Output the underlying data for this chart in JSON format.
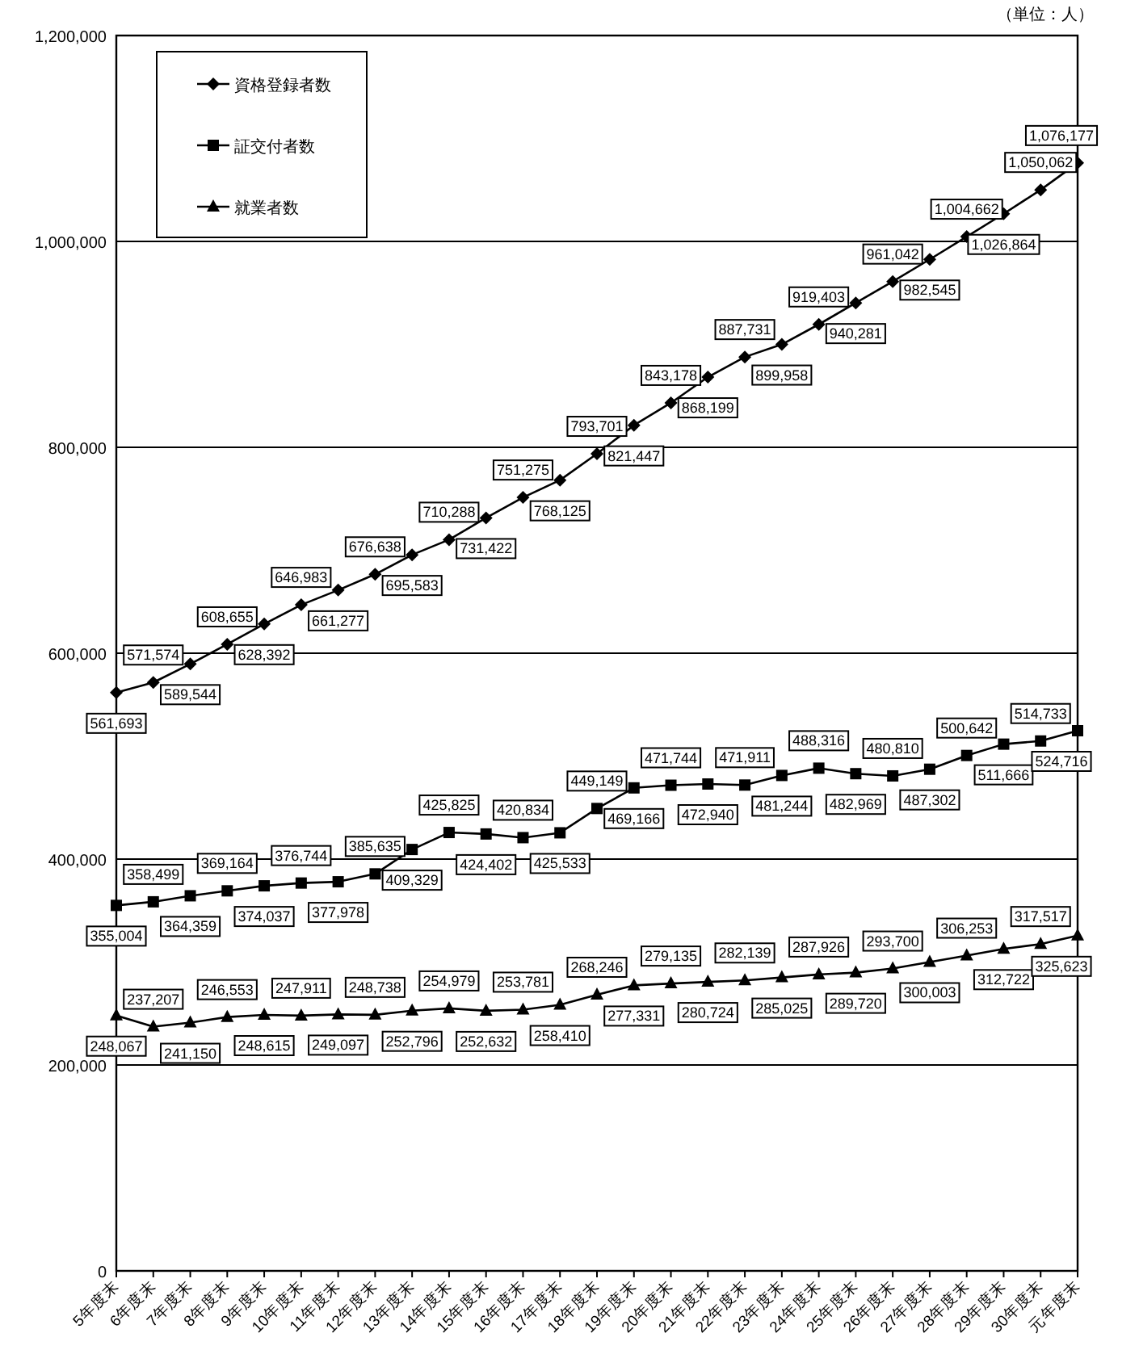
{
  "chart_data": {
    "type": "line",
    "annotations": [
      "（単位：人）"
    ],
    "categories": [
      "5年度末",
      "6年度末",
      "7年度末",
      "8年度末",
      "9年度末",
      "10年度末",
      "11年度末",
      "12年度末",
      "13年度末",
      "14年度末",
      "15年度末",
      "16年度末",
      "17年度末",
      "18年度末",
      "19年度末",
      "20年度末",
      "21年度末",
      "22年度末",
      "23年度末",
      "24年度末",
      "25年度末",
      "26年度末",
      "27年度末",
      "28年度末",
      "29年度末",
      "30年度末",
      "元年度末"
    ],
    "series": [
      {
        "name": "資格登録者数",
        "color": "#000000",
        "marker": "diamond",
        "values": [
          561693,
          571574,
          589544,
          608655,
          628392,
          646983,
          661277,
          676638,
          695583,
          710288,
          731422,
          751275,
          768125,
          793701,
          821447,
          843178,
          868199,
          887731,
          899958,
          919403,
          940281,
          961042,
          982545,
          1004662,
          1026864,
          1050062,
          1076177
        ],
        "value_labels": [
          "561,693",
          "571,574",
          "589,544",
          "608,655",
          "628,392",
          "646,983",
          "661,277",
          "676,638",
          "695,583",
          "710,288",
          "731,422",
          "751,275",
          "768,125",
          "793,701",
          "821,447",
          "843,178",
          "868,199",
          "887,731",
          "899,958",
          "919,403",
          "940,281",
          "961,042",
          "982,545",
          "1,004,662",
          "1,026,864",
          "1,050,062",
          "1,076,177"
        ]
      },
      {
        "name": "証交付者数",
        "color": "#000000",
        "marker": "square",
        "values": [
          355004,
          358499,
          364359,
          369164,
          374037,
          376744,
          377978,
          385635,
          409329,
          425825,
          424402,
          420834,
          425533,
          449149,
          469166,
          471744,
          472940,
          471911,
          481244,
          488316,
          482969,
          480810,
          487302,
          500642,
          511666,
          514733,
          524716
        ],
        "value_labels": [
          "355,004",
          "358,499",
          "364,359",
          "369,164",
          "374,037",
          "376,744",
          "377,978",
          "385,635",
          "409,329",
          "425,825",
          "424,402",
          "420,834",
          "425,533",
          "449,149",
          "469,166",
          "471,744",
          "472,940",
          "471,911",
          "481,244",
          "488,316",
          "482,969",
          "480,810",
          "487,302",
          "500,642",
          "511,666",
          "514,733",
          "524,716"
        ]
      },
      {
        "name": "就業者数",
        "color": "#000000",
        "marker": "triangle",
        "values": [
          248067,
          237207,
          241150,
          246553,
          248615,
          247911,
          249097,
          248738,
          252796,
          254979,
          252632,
          253781,
          258410,
          268246,
          277331,
          279135,
          280724,
          282139,
          285025,
          287926,
          289720,
          293700,
          300003,
          306253,
          312722,
          317517,
          325623
        ],
        "value_labels": [
          "248,067",
          "237,207",
          "241,150",
          "246,553",
          "248,615",
          "247,911",
          "249,097",
          "248,738",
          "252,796",
          "254,979",
          "252,632",
          "253,781",
          "258,410",
          "268,246",
          "277,331",
          "279,135",
          "280,724",
          "282,139",
          "285,025",
          "287,926",
          "289,720",
          "293,700",
          "300,003",
          "306,253",
          "312,722",
          "317,517",
          "325,623"
        ]
      }
    ],
    "ylim": [
      0,
      1200000
    ],
    "yticks": [
      0,
      {
        "value": 200000,
        "label": "200,000"
      },
      {
        "value": 400000,
        "label": "400,000"
      },
      {
        "value": 600000,
        "label": "600,000"
      },
      {
        "value": 800000,
        "label": "800,000"
      },
      {
        "value": 1000000,
        "label": "1,000,000"
      },
      {
        "value": 1200000,
        "label": "1,200,000"
      }
    ],
    "grid": "y",
    "legend": "top left",
    "line_style": "solid"
  }
}
